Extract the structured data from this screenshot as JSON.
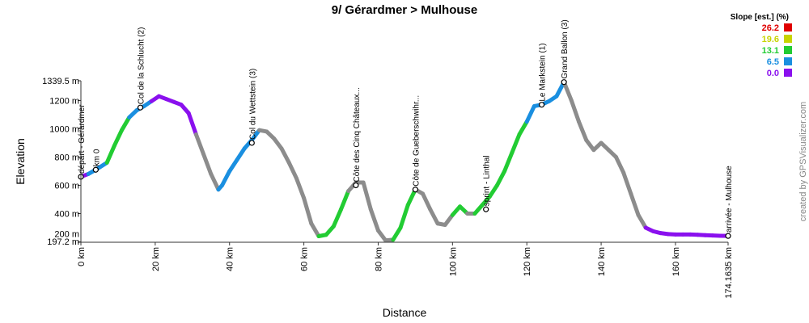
{
  "chart_data": {
    "type": "line",
    "title": "9/ Gérardmer > Mulhouse",
    "xlabel": "Distance",
    "ylabel": "Elevation",
    "xlim": [
      0,
      174.1635
    ],
    "ylim": [
      197.2,
      1339.5
    ],
    "x_ticks": [
      {
        "value": 0,
        "label": "0 km"
      },
      {
        "value": 20,
        "label": "20 km"
      },
      {
        "value": 40,
        "label": "40 km"
      },
      {
        "value": 60,
        "label": "60 km"
      },
      {
        "value": 80,
        "label": "80 km"
      },
      {
        "value": 100,
        "label": "100 km"
      },
      {
        "value": 120,
        "label": "120 km"
      },
      {
        "value": 140,
        "label": "140 km"
      },
      {
        "value": 160,
        "label": "160 km"
      },
      {
        "value": 174.1635,
        "label": "174.1635 km"
      }
    ],
    "y_ticks": [
      {
        "value": 197.2,
        "label": "197.2 m"
      },
      {
        "value": 200,
        "label": "200 m"
      },
      {
        "value": 400,
        "label": "400 m"
      },
      {
        "value": 600,
        "label": "600 m"
      },
      {
        "value": 800,
        "label": "800 m"
      },
      {
        "value": 1000,
        "label": "1000 m"
      },
      {
        "value": 1200,
        "label": "1200 m"
      },
      {
        "value": 1339.5,
        "label": "1339.5 m"
      }
    ],
    "grid": false,
    "legend": {
      "title": "Slope [est.] (%)",
      "placement": "top-right",
      "entries": [
        {
          "label": "26.2",
          "color": "#e00000"
        },
        {
          "label": "19.6",
          "color": "#c8d400"
        },
        {
          "label": "13.1",
          "color": "#22cc33"
        },
        {
          "label": "6.5",
          "color": "#1a8fe0"
        },
        {
          "label": "0.0",
          "color": "#8a10ee"
        }
      ]
    },
    "profile": {
      "x": [
        0,
        2,
        4,
        7,
        9,
        11,
        13,
        15,
        17,
        19,
        21,
        23,
        25,
        27,
        29,
        31,
        33,
        35,
        37,
        38,
        40,
        42,
        44,
        46,
        48,
        50,
        52,
        54,
        56,
        58,
        60,
        62,
        64,
        66,
        68,
        70,
        72,
        74,
        76,
        78,
        80,
        82,
        84,
        86,
        88,
        90,
        92,
        94,
        96,
        98,
        100,
        102,
        104,
        106,
        108,
        110,
        112,
        114,
        116,
        118,
        120,
        122,
        124,
        126,
        128,
        130,
        132,
        134,
        136,
        138,
        140,
        142,
        144,
        146,
        148,
        150,
        152,
        154,
        156,
        158,
        160,
        162,
        164,
        166,
        168,
        170,
        172,
        174.1635
      ],
      "y": [
        660,
        680,
        710,
        760,
        880,
        990,
        1080,
        1130,
        1160,
        1195,
        1230,
        1210,
        1190,
        1170,
        1110,
        960,
        820,
        680,
        570,
        600,
        700,
        780,
        860,
        920,
        990,
        980,
        930,
        860,
        760,
        650,
        510,
        330,
        240,
        250,
        310,
        430,
        560,
        620,
        620,
        430,
        280,
        210,
        215,
        300,
        460,
        570,
        540,
        430,
        330,
        320,
        390,
        450,
        400,
        400,
        460,
        520,
        600,
        700,
        830,
        960,
        1050,
        1160,
        1170,
        1195,
        1230,
        1330,
        1200,
        1050,
        920,
        850,
        900,
        850,
        800,
        690,
        540,
        390,
        300,
        275,
        262,
        255,
        252,
        252,
        252,
        250,
        247,
        245,
        243,
        242
      ],
      "slope_color_stops": [
        {
          "from": 0,
          "to": 2,
          "color": "#8a10ee"
        },
        {
          "from": 2,
          "to": 7,
          "color": "#1a8fe0"
        },
        {
          "from": 7,
          "to": 13,
          "color": "#22cc33"
        },
        {
          "from": 13,
          "to": 19,
          "color": "#1a8fe0"
        },
        {
          "from": 19,
          "to": 31,
          "color": "#8a10ee"
        },
        {
          "from": 37,
          "to": 48,
          "color": "#1a8fe0"
        },
        {
          "from": 64,
          "to": 72,
          "color": "#22cc33"
        },
        {
          "from": 84,
          "to": 90,
          "color": "#22cc33"
        },
        {
          "from": 100,
          "to": 104,
          "color": "#22cc33"
        },
        {
          "from": 106,
          "to": 120,
          "color": "#22cc33"
        },
        {
          "from": 120,
          "to": 130,
          "color": "#1a8fe0"
        },
        {
          "from": 152,
          "to": 174.1635,
          "color": "#8a10ee"
        }
      ]
    },
    "waypoints": [
      {
        "x": 0,
        "y": 660,
        "label": "départ - Gérardmer"
      },
      {
        "x": 4,
        "y": 710,
        "label": "km 0"
      },
      {
        "x": 16,
        "y": 1150,
        "label": "Col de la Schlucht (2)"
      },
      {
        "x": 46,
        "y": 900,
        "label": "Col du Wettstein (3)"
      },
      {
        "x": 74,
        "y": 600,
        "label": "Côte des Cinq Châteaux..."
      },
      {
        "x": 90,
        "y": 570,
        "label": "Côte de Gueberschwihr..."
      },
      {
        "x": 109,
        "y": 430,
        "label": "sprint - Linthal"
      },
      {
        "x": 124,
        "y": 1170,
        "label": "Le Markstein (1)"
      },
      {
        "x": 130,
        "y": 1330,
        "label": "Grand Ballon (3)"
      },
      {
        "x": 174.1635,
        "y": 242,
        "label": "arrivée - Mulhouse"
      }
    ]
  },
  "credit": "created by GPSVisualizer.com"
}
